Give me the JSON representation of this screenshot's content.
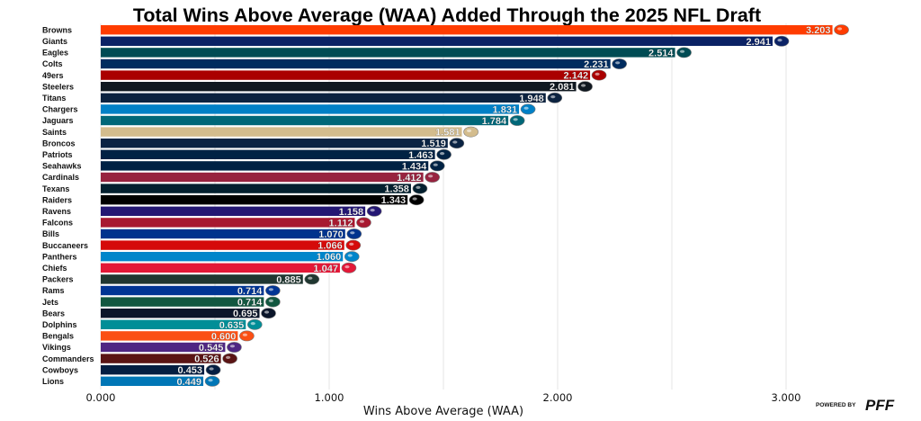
{
  "chart_data": {
    "type": "bar",
    "orientation": "horizontal",
    "title": "Total Wins Above Average (WAA) Added Through the 2025 NFL Draft",
    "xlabel": "Wins Above Average (WAA)",
    "ylabel": "",
    "xlim": [
      0,
      3.2
    ],
    "xticks": [
      0,
      1,
      2,
      3
    ],
    "xtick_labels": [
      "0.000",
      "1.000",
      "2.000",
      "3.000"
    ],
    "grid": "vertical",
    "legend": "none",
    "categories": [
      "Browns",
      "Giants",
      "Eagles",
      "Colts",
      "49ers",
      "Steelers",
      "Titans",
      "Chargers",
      "Jaguars",
      "Saints",
      "Broncos",
      "Patriots",
      "Seahawks",
      "Cardinals",
      "Texans",
      "Raiders",
      "Ravens",
      "Falcons",
      "Bills",
      "Buccaneers",
      "Panthers",
      "Chiefs",
      "Packers",
      "Rams",
      "Jets",
      "Bears",
      "Dolphins",
      "Bengals",
      "Vikings",
      "Commanders",
      "Cowboys",
      "Lions"
    ],
    "values": [
      3.203,
      2.941,
      2.514,
      2.231,
      2.142,
      2.081,
      1.948,
      1.831,
      1.784,
      1.581,
      1.519,
      1.463,
      1.434,
      1.412,
      1.358,
      1.343,
      1.158,
      1.112,
      1.07,
      1.066,
      1.06,
      1.047,
      0.885,
      0.714,
      0.714,
      0.695,
      0.635,
      0.6,
      0.545,
      0.526,
      0.453,
      0.449
    ],
    "value_labels": [
      "3.203",
      "2.941",
      "2.514",
      "2.231",
      "2.142",
      "2.081",
      "1.948",
      "1.831",
      "1.784",
      "1.581",
      "1.519",
      "1.463",
      "1.434",
      "1.412",
      "1.358",
      "1.343",
      "1.158",
      "1.112",
      "1.070",
      "1.066",
      "1.060",
      "1.047",
      "0.885",
      "0.714",
      "0.714",
      "0.695",
      "0.635",
      "0.600",
      "0.545",
      "0.526",
      "0.453",
      "0.449"
    ],
    "colors": [
      "#FF3C00",
      "#0B2265",
      "#004C54",
      "#002C5F",
      "#AA0000",
      "#101820",
      "#0C2340",
      "#0080C6",
      "#006778",
      "#D3BC8D",
      "#0A2343",
      "#002244",
      "#002244",
      "#97233F",
      "#03202F",
      "#000000",
      "#241773",
      "#A71930",
      "#00338D",
      "#D50A0A",
      "#0085CA",
      "#E31837",
      "#203731",
      "#003594",
      "#125740",
      "#0B162A",
      "#008E97",
      "#FB4F14",
      "#4F2683",
      "#5A1414",
      "#041E42",
      "#0076B6"
    ],
    "logos": [
      "browns-logo",
      "giants-logo",
      "eagles-logo",
      "colts-logo",
      "49ers-logo",
      "steelers-logo",
      "titans-logo",
      "chargers-logo",
      "jaguars-logo",
      "saints-logo",
      "broncos-logo",
      "patriots-logo",
      "seahawks-logo",
      "cardinals-logo",
      "texans-logo",
      "raiders-logo",
      "ravens-logo",
      "falcons-logo",
      "bills-logo",
      "buccaneers-logo",
      "panthers-logo",
      "chiefs-logo",
      "packers-logo",
      "rams-logo",
      "jets-logo",
      "bears-logo",
      "dolphins-logo",
      "bengals-logo",
      "vikings-logo",
      "commanders-logo",
      "cowboys-logo",
      "lions-logo"
    ]
  },
  "branding": {
    "powered_by": "POWERED BY",
    "logo_text": "PFF"
  }
}
